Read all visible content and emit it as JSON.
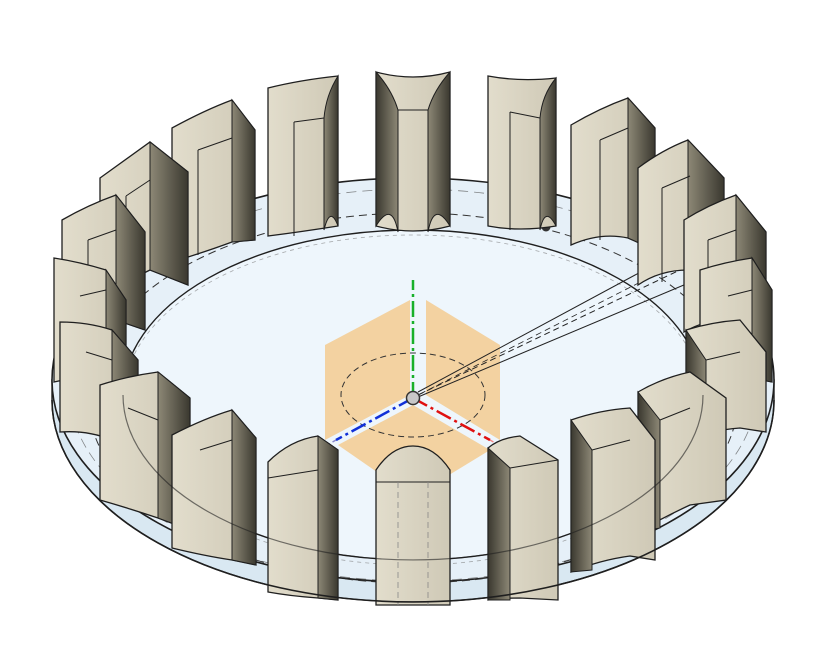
{
  "viewport": {
    "background": "#ffffff",
    "part_color": "#d8d3c2",
    "part_shadow": "#5a5648",
    "floor_color": "#e9f3fa",
    "edge_color": "#1f1f1f"
  },
  "pattern": {
    "blade_count": 20
  },
  "origin_gizmo": {
    "plane_color": "#f4c98a",
    "x_axis_color": "#e01010",
    "y_axis_color": "#18b02a",
    "z_axis_color": "#1030d8"
  }
}
